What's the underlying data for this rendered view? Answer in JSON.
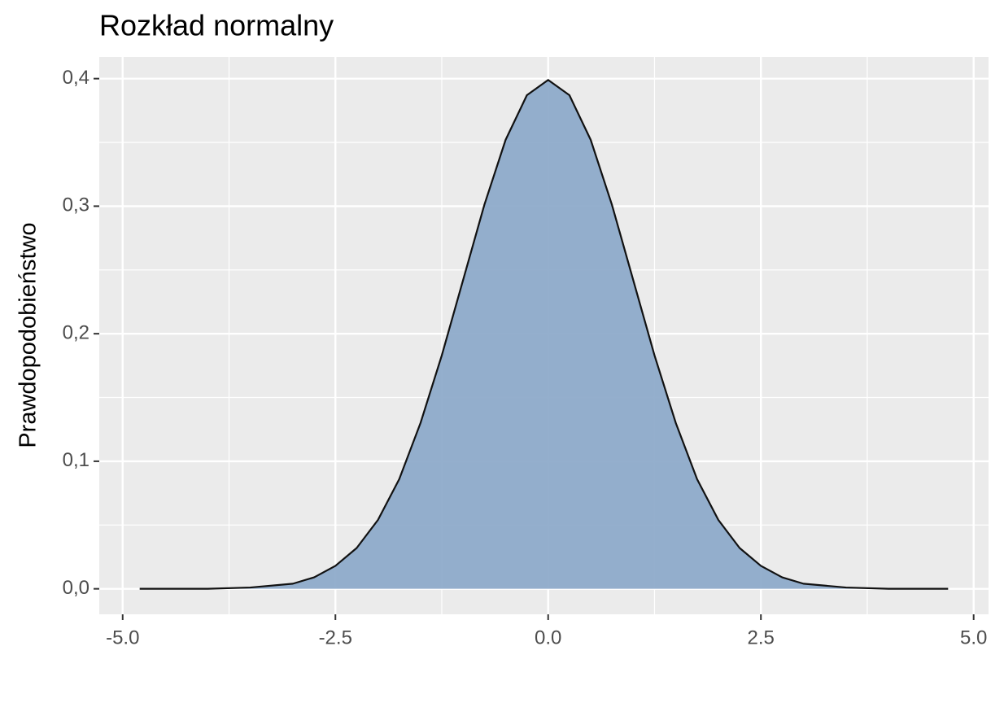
{
  "chart_data": {
    "type": "area",
    "title": "Rozkład normalny",
    "y_label": "Prawdopodobieństwo",
    "x": [
      -4.8,
      -4.5,
      -4,
      -3.5,
      -3,
      -2.75,
      -2.5,
      -2.25,
      -2,
      -1.75,
      -1.5,
      -1.25,
      -1,
      -0.75,
      -0.5,
      -0.25,
      0,
      0.25,
      0.5,
      0.75,
      1,
      1.25,
      1.5,
      1.75,
      2,
      2.25,
      2.5,
      2.75,
      3,
      3.5,
      4,
      4.5,
      4.7
    ],
    "values": [
      0,
      0,
      0,
      0.001,
      0.004,
      0.009,
      0.018,
      0.032,
      0.054,
      0.086,
      0.13,
      0.183,
      0.242,
      0.301,
      0.352,
      0.387,
      0.399,
      0.387,
      0.352,
      0.301,
      0.242,
      0.183,
      0.13,
      0.086,
      0.054,
      0.032,
      0.018,
      0.009,
      0.004,
      0.001,
      0,
      0,
      0
    ],
    "color": "#8eabca",
    "line_color": "#111111",
    "xlim": [
      -5.275,
      5.175
    ],
    "xticks": [
      {
        "value": -5,
        "label": "-5.0"
      },
      {
        "value": -2.5,
        "label": "-2.5"
      },
      {
        "value": 0,
        "label": "0.0"
      },
      {
        "value": 2.5,
        "label": "2.5"
      },
      {
        "value": 5,
        "label": "5.0"
      }
    ],
    "ylim": [
      -0.02,
      0.417
    ],
    "yticks": [
      {
        "value": 0,
        "label": "0,0"
      },
      {
        "value": 0.1,
        "label": "0,1"
      },
      {
        "value": 0.2,
        "label": "0,2"
      },
      {
        "value": 0.3,
        "label": "0,3"
      },
      {
        "value": 0.4,
        "label": "0,4"
      }
    ],
    "grid": true
  }
}
